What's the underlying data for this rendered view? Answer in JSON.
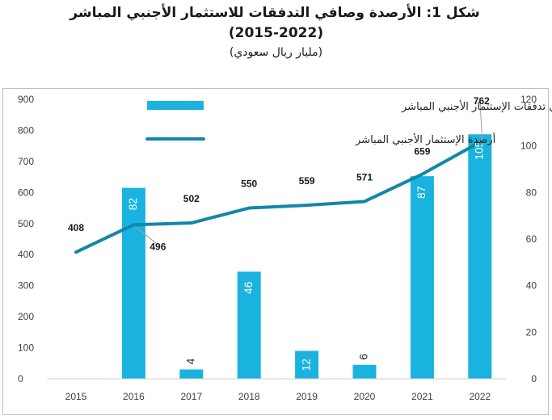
{
  "chart_data": {
    "type": "bar+line",
    "title": "شكل 1: الأرصدة وصافي التدفقات للاستثمار الأجنبي المباشر",
    "subtitle": "(2015-2022)",
    "unit": "(مليار ريال سعودي)",
    "categories": [
      "2015",
      "2016",
      "2017",
      "2018",
      "2019",
      "2020",
      "2021",
      "2022"
    ],
    "series": [
      {
        "name": "صافي تدفقات الإستثمار الأجنبي المباشر",
        "type": "bar",
        "axis": "right",
        "color": "#1ab3e0",
        "values": [
          null,
          82,
          4,
          46,
          12,
          6,
          87,
          105
        ],
        "labels": [
          "",
          "82",
          "4",
          "46",
          "12",
          "6",
          "87",
          "105"
        ]
      },
      {
        "name": "أرصدة الإستثمار الأجنبي المباشر",
        "type": "line",
        "axis": "left",
        "color": "#1387a8",
        "values": [
          408,
          496,
          502,
          550,
          559,
          571,
          659,
          762
        ],
        "labels": [
          "408",
          "496",
          "502",
          "550",
          "559",
          "571",
          "659",
          "762"
        ]
      }
    ],
    "left_axis": {
      "ylim": [
        0,
        900
      ],
      "ticks": [
        "0",
        "100",
        "200",
        "300",
        "400",
        "500",
        "600",
        "700",
        "800",
        "900"
      ]
    },
    "right_axis": {
      "ylim": [
        0,
        120
      ],
      "ticks": [
        "0",
        "20",
        "40",
        "60",
        "80",
        "100",
        "120"
      ]
    },
    "grid": false,
    "legend_position": "top-center"
  }
}
